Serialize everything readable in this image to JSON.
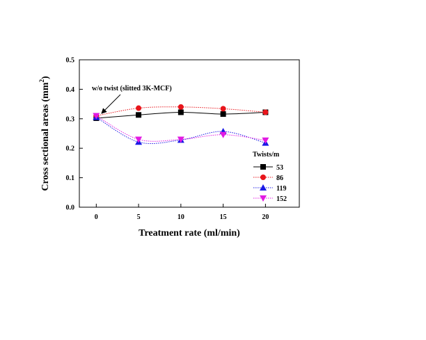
{
  "chart_data": {
    "type": "line",
    "xlabel": "Treatment rate (ml/min)",
    "ylabel_main": "Cross sectional areas (mm",
    "ylabel_sup": "2",
    "ylabel_close": ")",
    "xlim": [
      -2,
      24
    ],
    "ylim": [
      0.0,
      0.5
    ],
    "xticks": [
      0,
      5,
      10,
      15,
      20
    ],
    "xtick_labels": [
      "0",
      "5",
      "10",
      "15",
      "20"
    ],
    "yticks": [
      0.0,
      0.1,
      0.2,
      0.3,
      0.4,
      0.5
    ],
    "ytick_labels": [
      "0.0",
      "0.1",
      "0.2",
      "0.3",
      "0.4",
      "0.5"
    ],
    "grid": false,
    "legend_title": "Twists/m",
    "legend_position": "right",
    "annotation": {
      "text": "w/o twist (slitted 3K-MCF)",
      "target_x": 0,
      "target_y": 0.305
    },
    "x": [
      0,
      5,
      10,
      15,
      20
    ],
    "series": [
      {
        "name": "53",
        "values": [
          0.302,
          0.313,
          0.322,
          0.316,
          0.322
        ],
        "color": "#000000",
        "marker": "square",
        "line": "solid"
      },
      {
        "name": "86",
        "values": [
          0.31,
          0.336,
          0.34,
          0.334,
          0.322
        ],
        "color": "#e8151b",
        "marker": "circle",
        "line": "dotted"
      },
      {
        "name": "119",
        "values": [
          0.305,
          0.221,
          0.228,
          0.257,
          0.218
        ],
        "color": "#1a1ae6",
        "marker": "triangle-up",
        "line": "dotted"
      },
      {
        "name": "152",
        "values": [
          0.31,
          0.23,
          0.23,
          0.246,
          0.227
        ],
        "color": "#e21ae2",
        "marker": "triangle-down",
        "line": "dotted"
      }
    ]
  }
}
